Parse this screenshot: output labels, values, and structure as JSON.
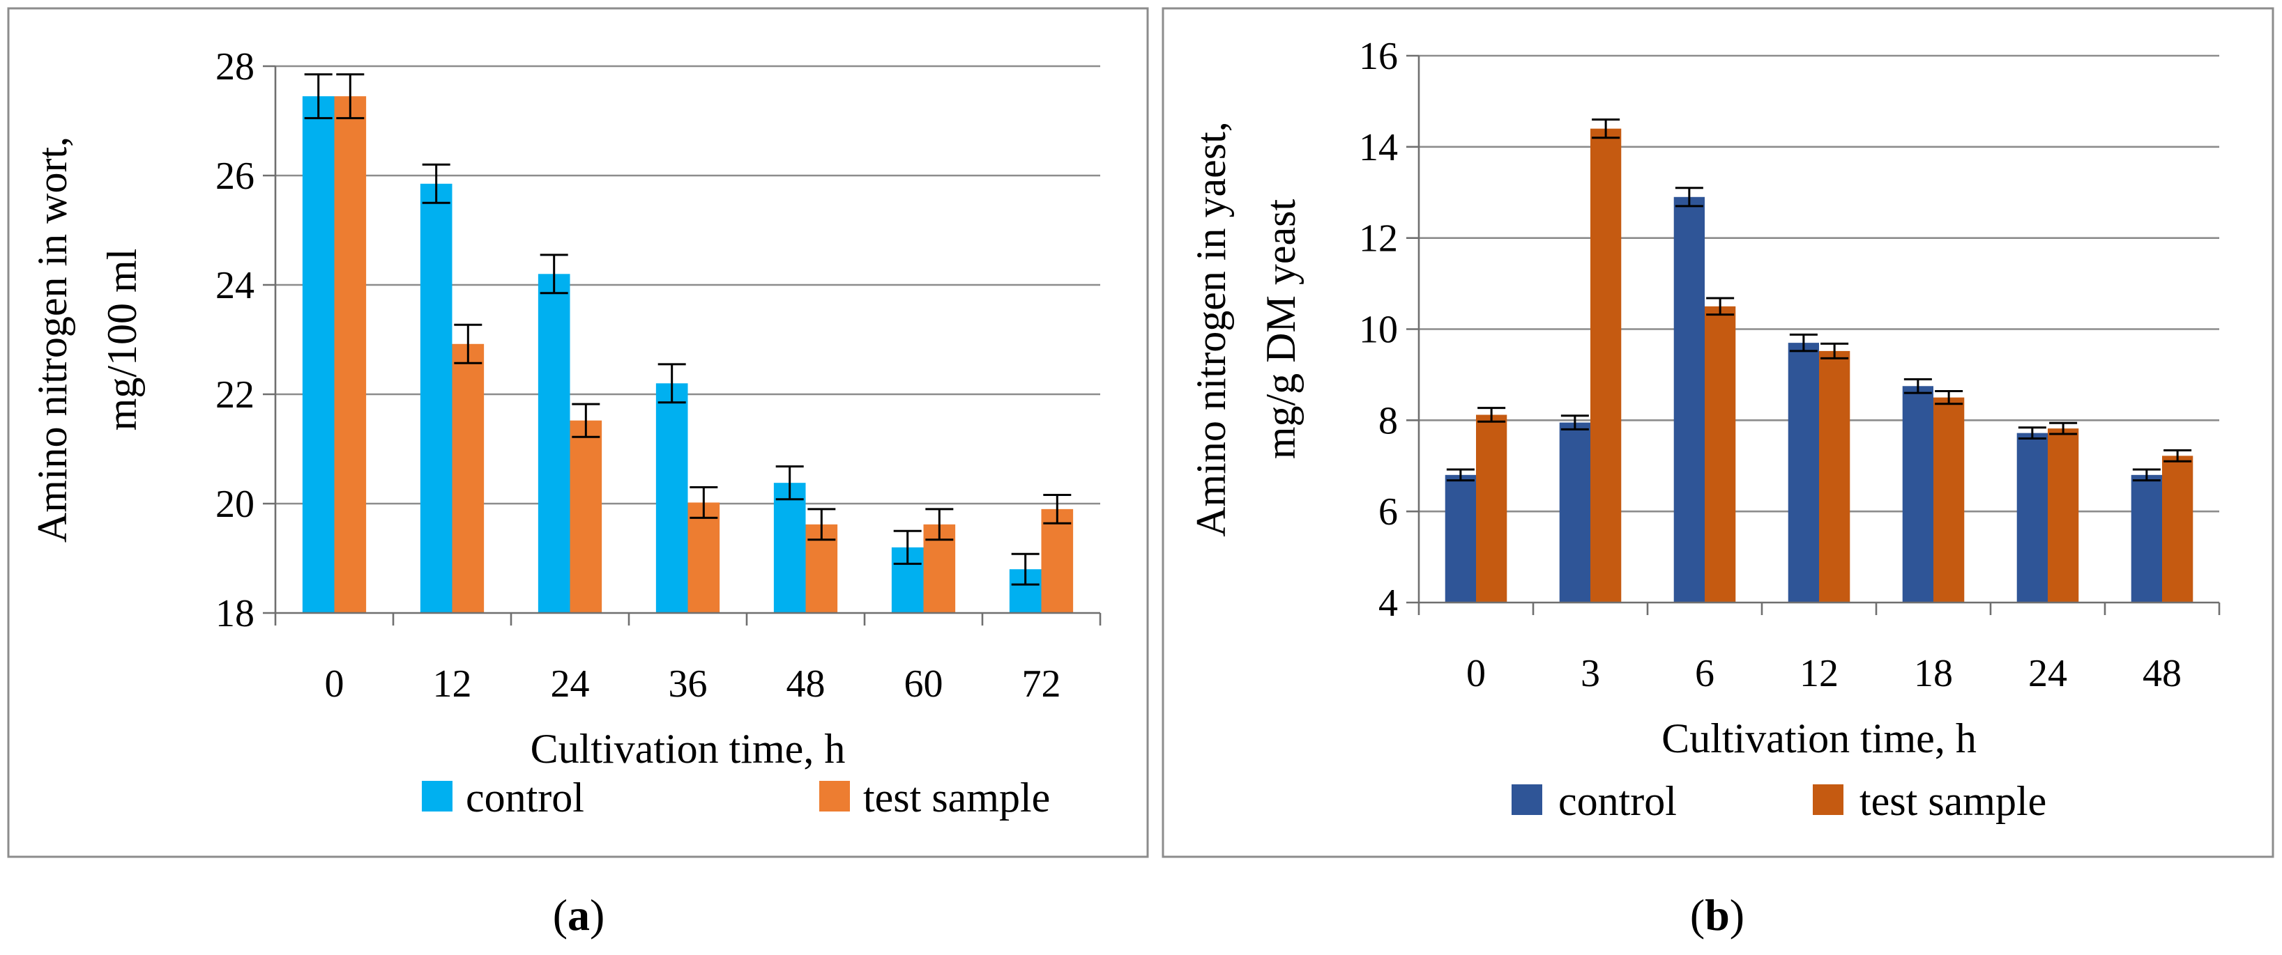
{
  "chart_data": [
    {
      "type": "bar",
      "panel_label_letter": "a",
      "categories": [
        "0",
        "12",
        "24",
        "36",
        "48",
        "60",
        "72"
      ],
      "series": [
        {
          "name": "control",
          "color": "#00B0F0",
          "values": [
            27.45,
            25.85,
            24.2,
            22.2,
            20.38,
            19.2,
            18.8
          ],
          "errors": [
            0.4,
            0.35,
            0.35,
            0.35,
            0.3,
            0.3,
            0.28
          ]
        },
        {
          "name": "test sample",
          "color": "#ED7D31",
          "values": [
            27.45,
            22.92,
            21.52,
            20.02,
            19.62,
            19.62,
            19.9
          ],
          "errors": [
            0.4,
            0.35,
            0.3,
            0.28,
            0.28,
            0.28,
            0.26
          ]
        }
      ],
      "title": "",
      "xlabel": "Cultivation time, h",
      "ylabel_lines": [
        "Amino nitrogen in wort,",
        "mg/100 ml"
      ],
      "ylim": [
        18,
        28
      ],
      "yticks": [
        18,
        20,
        22,
        24,
        26,
        28
      ],
      "grid": true,
      "legend": "bottom"
    },
    {
      "type": "bar",
      "panel_label_letter": "b",
      "categories": [
        "0",
        "3",
        "6",
        "12",
        "18",
        "24",
        "48"
      ],
      "series": [
        {
          "name": "control",
          "color": "#2F5597",
          "values": [
            6.8,
            7.95,
            12.9,
            9.7,
            8.75,
            7.72,
            6.8
          ],
          "errors": [
            0.12,
            0.15,
            0.2,
            0.18,
            0.15,
            0.12,
            0.12
          ]
        },
        {
          "name": "test sample",
          "color": "#C55A11",
          "values": [
            8.12,
            14.4,
            10.5,
            9.52,
            8.5,
            7.82,
            7.22
          ],
          "errors": [
            0.15,
            0.2,
            0.18,
            0.16,
            0.14,
            0.12,
            0.12
          ]
        }
      ],
      "title": "",
      "xlabel": "Cultivation time, h",
      "ylabel_lines": [
        "Amino nitrogen in yaest,",
        "mg/g DM yeast"
      ],
      "ylim": [
        4,
        16
      ],
      "yticks": [
        4,
        6,
        8,
        10,
        12,
        14,
        16
      ],
      "grid": true,
      "legend": "bottom"
    }
  ]
}
